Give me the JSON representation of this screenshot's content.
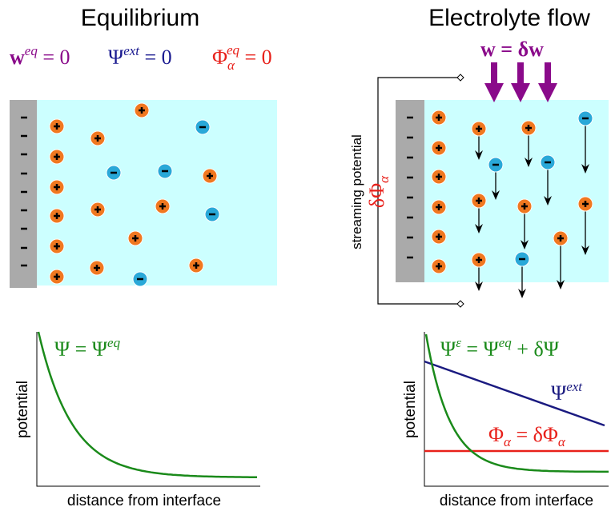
{
  "left_panel": {
    "title": "Equilibrium",
    "equations": [
      {
        "base": "w",
        "sup": "eq",
        "rest": " = 0"
      },
      {
        "base": "Ψ",
        "sup": "ext",
        "rest": " = 0"
      },
      {
        "base": "Φ",
        "sub": "α",
        "sup": "eq",
        "rest": " = 0"
      }
    ],
    "plot": {
      "curve_label": {
        "base": "Ψ = Ψ",
        "sup": "eq"
      },
      "y_label": "potential",
      "x_label": "distance from interface"
    }
  },
  "right_panel": {
    "title": "Electrolyte flow",
    "flow_label": "w = δw",
    "streaming_label": "streaming potential",
    "streaming_symbol": {
      "base": "δΦ",
      "sub": "α"
    },
    "plot": {
      "total_label": {
        "base": "Ψ",
        "sup": "ε",
        "mid": " = Ψ",
        "sup2": "eq",
        "rest": " + δΨ"
      },
      "ext_label": {
        "base": "Ψ",
        "sup": "ext"
      },
      "phi_label": {
        "base": "Φ",
        "sub": "α",
        "mid": " = δΦ",
        "sub2": "α"
      },
      "y_label": "potential",
      "x_label": "distance from interface"
    }
  }
}
